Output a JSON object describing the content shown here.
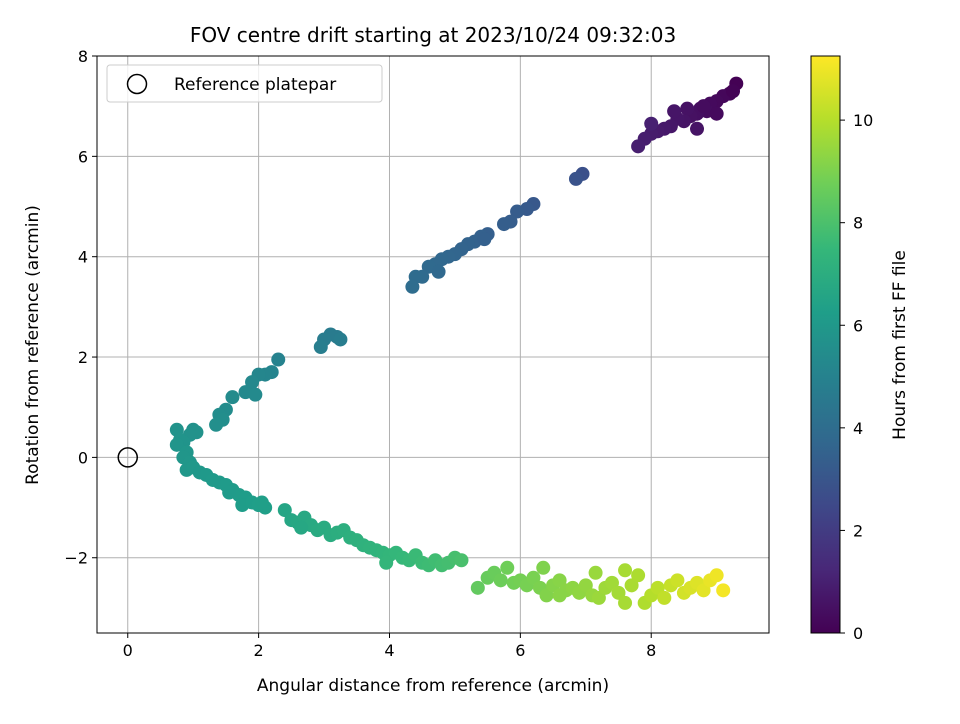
{
  "chart_data": {
    "type": "scatter",
    "title": "FOV centre drift starting at 2023/10/24 09:32:03",
    "xlabel": "Angular distance from reference (arcmin)",
    "ylabel": "Rotation from reference (arcmin)",
    "xlim": [
      -0.47,
      9.8
    ],
    "ylim": [
      -3.5,
      8
    ],
    "xticks": [
      "0",
      "2",
      "4",
      "6",
      "8"
    ],
    "yticks": [
      "−2",
      "0",
      "2",
      "4",
      "6",
      "8"
    ],
    "grid": true,
    "legend": {
      "position": "top-left",
      "label": "Reference platepar"
    },
    "reference_point": {
      "x": 0,
      "y": 0
    },
    "colorbar": {
      "label": "Hours from first FF file",
      "min": 0,
      "max": 11.25,
      "ticks": [
        "0",
        "2",
        "4",
        "6",
        "8",
        "10"
      ],
      "colormap": "viridis",
      "colors": [
        "#440154",
        "#482878",
        "#3e4989",
        "#31688e",
        "#26828e",
        "#1f9e89",
        "#35b779",
        "#6ece58",
        "#b5de2b",
        "#fde725"
      ]
    },
    "series": [
      {
        "values": [
          {
            "x": 9.3,
            "y": 7.45,
            "c": 0.0
          },
          {
            "x": 9.2,
            "y": 7.25,
            "c": 0.1
          },
          {
            "x": 9.1,
            "y": 7.2,
            "c": 0.2
          },
          {
            "x": 9.0,
            "y": 7.1,
            "c": 0.25
          },
          {
            "x": 8.9,
            "y": 7.05,
            "c": 0.3
          },
          {
            "x": 8.85,
            "y": 6.9,
            "c": 0.35
          },
          {
            "x": 8.75,
            "y": 6.95,
            "c": 0.4
          },
          {
            "x": 8.7,
            "y": 6.85,
            "c": 0.45
          },
          {
            "x": 8.6,
            "y": 6.8,
            "c": 0.5
          },
          {
            "x": 8.55,
            "y": 6.95,
            "c": 0.55
          },
          {
            "x": 8.5,
            "y": 6.7,
            "c": 0.6
          },
          {
            "x": 8.4,
            "y": 6.75,
            "c": 0.65
          },
          {
            "x": 8.3,
            "y": 6.6,
            "c": 0.7
          },
          {
            "x": 8.2,
            "y": 6.55,
            "c": 0.75
          },
          {
            "x": 8.1,
            "y": 6.5,
            "c": 0.8
          },
          {
            "x": 8.0,
            "y": 6.45,
            "c": 0.85
          },
          {
            "x": 7.9,
            "y": 6.35,
            "c": 0.9
          },
          {
            "x": 7.8,
            "y": 6.2,
            "c": 0.95
          },
          {
            "x": 8.0,
            "y": 6.65,
            "c": 1.0
          },
          {
            "x": 8.7,
            "y": 6.55,
            "c": 0.6
          },
          {
            "x": 8.8,
            "y": 7.0,
            "c": 0.35
          },
          {
            "x": 9.0,
            "y": 6.85,
            "c": 0.3
          },
          {
            "x": 9.25,
            "y": 7.3,
            "c": 0.08
          },
          {
            "x": 8.35,
            "y": 6.9,
            "c": 0.65
          },
          {
            "x": 6.95,
            "y": 5.65,
            "c": 2.8
          },
          {
            "x": 6.85,
            "y": 5.55,
            "c": 2.9
          },
          {
            "x": 6.2,
            "y": 5.05,
            "c": 3.1
          },
          {
            "x": 6.1,
            "y": 4.95,
            "c": 3.2
          },
          {
            "x": 5.95,
            "y": 4.9,
            "c": 3.25
          },
          {
            "x": 5.85,
            "y": 4.7,
            "c": 3.3
          },
          {
            "x": 5.75,
            "y": 4.65,
            "c": 3.35
          },
          {
            "x": 5.5,
            "y": 4.45,
            "c": 3.4
          },
          {
            "x": 5.4,
            "y": 4.4,
            "c": 3.45
          },
          {
            "x": 5.3,
            "y": 4.3,
            "c": 3.5
          },
          {
            "x": 5.2,
            "y": 4.25,
            "c": 3.55
          },
          {
            "x": 5.1,
            "y": 4.15,
            "c": 3.6
          },
          {
            "x": 5.0,
            "y": 4.05,
            "c": 3.65
          },
          {
            "x": 4.9,
            "y": 4.0,
            "c": 3.7
          },
          {
            "x": 4.8,
            "y": 3.95,
            "c": 3.75
          },
          {
            "x": 4.7,
            "y": 3.85,
            "c": 3.8
          },
          {
            "x": 4.6,
            "y": 3.8,
            "c": 3.85
          },
          {
            "x": 4.5,
            "y": 3.6,
            "c": 3.9
          },
          {
            "x": 4.4,
            "y": 3.6,
            "c": 3.95
          },
          {
            "x": 4.35,
            "y": 3.4,
            "c": 4.0
          },
          {
            "x": 5.45,
            "y": 4.35,
            "c": 3.42
          },
          {
            "x": 4.75,
            "y": 3.7,
            "c": 3.82
          },
          {
            "x": 3.2,
            "y": 2.4,
            "c": 4.6
          },
          {
            "x": 3.1,
            "y": 2.45,
            "c": 4.65
          },
          {
            "x": 3.0,
            "y": 2.35,
            "c": 4.7
          },
          {
            "x": 3.25,
            "y": 2.35,
            "c": 4.75
          },
          {
            "x": 2.95,
            "y": 2.2,
            "c": 4.8
          },
          {
            "x": 2.3,
            "y": 1.95,
            "c": 5.0
          },
          {
            "x": 2.2,
            "y": 1.7,
            "c": 5.1
          },
          {
            "x": 2.1,
            "y": 1.65,
            "c": 5.15
          },
          {
            "x": 2.0,
            "y": 1.65,
            "c": 5.2
          },
          {
            "x": 1.9,
            "y": 1.5,
            "c": 5.25
          },
          {
            "x": 1.8,
            "y": 1.3,
            "c": 5.3
          },
          {
            "x": 1.95,
            "y": 1.25,
            "c": 5.35
          },
          {
            "x": 1.6,
            "y": 1.2,
            "c": 5.4
          },
          {
            "x": 1.5,
            "y": 0.95,
            "c": 5.45
          },
          {
            "x": 1.4,
            "y": 0.85,
            "c": 5.5
          },
          {
            "x": 1.45,
            "y": 0.75,
            "c": 5.55
          },
          {
            "x": 1.35,
            "y": 0.65,
            "c": 5.6
          },
          {
            "x": 1.0,
            "y": 0.55,
            "c": 5.65
          },
          {
            "x": 1.05,
            "y": 0.5,
            "c": 5.7
          },
          {
            "x": 0.95,
            "y": 0.45,
            "c": 5.72
          },
          {
            "x": 0.75,
            "y": 0.55,
            "c": 5.75
          },
          {
            "x": 0.8,
            "y": 0.35,
            "c": 5.8
          },
          {
            "x": 0.85,
            "y": 0.3,
            "c": 5.82
          },
          {
            "x": 0.75,
            "y": 0.25,
            "c": 5.85
          },
          {
            "x": 0.9,
            "y": 0.1,
            "c": 5.88
          },
          {
            "x": 0.85,
            "y": 0.0,
            "c": 5.9
          },
          {
            "x": 0.95,
            "y": -0.1,
            "c": 5.92
          },
          {
            "x": 0.9,
            "y": -0.25,
            "c": 5.95
          },
          {
            "x": 1.0,
            "y": -0.2,
            "c": 5.97
          },
          {
            "x": 1.1,
            "y": -0.3,
            "c": 6.0
          },
          {
            "x": 1.2,
            "y": -0.35,
            "c": 6.02
          },
          {
            "x": 1.3,
            "y": -0.45,
            "c": 6.05
          },
          {
            "x": 1.4,
            "y": -0.5,
            "c": 6.08
          },
          {
            "x": 1.5,
            "y": -0.55,
            "c": 6.1
          },
          {
            "x": 1.6,
            "y": -0.65,
            "c": 6.13
          },
          {
            "x": 1.7,
            "y": -0.75,
            "c": 6.16
          },
          {
            "x": 1.8,
            "y": -0.8,
            "c": 6.2
          },
          {
            "x": 1.75,
            "y": -0.95,
            "c": 6.22
          },
          {
            "x": 1.9,
            "y": -0.9,
            "c": 6.25
          },
          {
            "x": 2.0,
            "y": -0.95,
            "c": 6.28
          },
          {
            "x": 2.1,
            "y": -1.0,
            "c": 6.3
          },
          {
            "x": 2.05,
            "y": -0.9,
            "c": 6.32
          },
          {
            "x": 1.55,
            "y": -0.7,
            "c": 6.12
          },
          {
            "x": 2.4,
            "y": -1.05,
            "c": 6.6
          },
          {
            "x": 2.5,
            "y": -1.25,
            "c": 6.65
          },
          {
            "x": 2.6,
            "y": -1.3,
            "c": 6.7
          },
          {
            "x": 2.7,
            "y": -1.2,
            "c": 6.75
          },
          {
            "x": 2.8,
            "y": -1.35,
            "c": 6.8
          },
          {
            "x": 2.9,
            "y": -1.45,
            "c": 6.85
          },
          {
            "x": 3.0,
            "y": -1.4,
            "c": 6.9
          },
          {
            "x": 3.1,
            "y": -1.55,
            "c": 6.95
          },
          {
            "x": 3.2,
            "y": -1.5,
            "c": 7.0
          },
          {
            "x": 3.3,
            "y": -1.45,
            "c": 7.05
          },
          {
            "x": 3.4,
            "y": -1.6,
            "c": 7.1
          },
          {
            "x": 3.5,
            "y": -1.65,
            "c": 7.15
          },
          {
            "x": 3.6,
            "y": -1.75,
            "c": 7.2
          },
          {
            "x": 3.7,
            "y": -1.8,
            "c": 7.25
          },
          {
            "x": 3.8,
            "y": -1.85,
            "c": 7.3
          },
          {
            "x": 3.9,
            "y": -1.9,
            "c": 7.35
          },
          {
            "x": 4.0,
            "y": -1.95,
            "c": 7.4
          },
          {
            "x": 4.1,
            "y": -1.9,
            "c": 7.45
          },
          {
            "x": 4.2,
            "y": -2.0,
            "c": 7.5
          },
          {
            "x": 4.3,
            "y": -2.05,
            "c": 7.55
          },
          {
            "x": 4.4,
            "y": -1.95,
            "c": 7.6
          },
          {
            "x": 4.5,
            "y": -2.1,
            "c": 7.65
          },
          {
            "x": 4.6,
            "y": -2.15,
            "c": 7.7
          },
          {
            "x": 4.7,
            "y": -2.05,
            "c": 7.75
          },
          {
            "x": 4.8,
            "y": -2.15,
            "c": 7.8
          },
          {
            "x": 4.9,
            "y": -2.1,
            "c": 7.85
          },
          {
            "x": 5.0,
            "y": -2.0,
            "c": 7.9
          },
          {
            "x": 5.1,
            "y": -2.05,
            "c": 7.95
          },
          {
            "x": 3.95,
            "y": -2.1,
            "c": 7.42
          },
          {
            "x": 2.65,
            "y": -1.4,
            "c": 6.72
          },
          {
            "x": 5.35,
            "y": -2.6,
            "c": 8.5
          },
          {
            "x": 5.5,
            "y": -2.4,
            "c": 8.6
          },
          {
            "x": 5.6,
            "y": -2.3,
            "c": 8.65
          },
          {
            "x": 5.7,
            "y": -2.45,
            "c": 8.7
          },
          {
            "x": 5.8,
            "y": -2.2,
            "c": 8.75
          },
          {
            "x": 5.9,
            "y": -2.5,
            "c": 8.8
          },
          {
            "x": 6.0,
            "y": -2.45,
            "c": 8.85
          },
          {
            "x": 6.1,
            "y": -2.55,
            "c": 8.9
          },
          {
            "x": 6.2,
            "y": -2.4,
            "c": 8.95
          },
          {
            "x": 6.3,
            "y": -2.6,
            "c": 9.0
          },
          {
            "x": 6.35,
            "y": -2.2,
            "c": 9.05
          },
          {
            "x": 6.4,
            "y": -2.75,
            "c": 9.1
          },
          {
            "x": 6.5,
            "y": -2.55,
            "c": 9.15
          },
          {
            "x": 6.6,
            "y": -2.45,
            "c": 9.2
          },
          {
            "x": 6.7,
            "y": -2.65,
            "c": 9.25
          },
          {
            "x": 6.8,
            "y": -2.6,
            "c": 9.3
          },
          {
            "x": 6.9,
            "y": -2.7,
            "c": 9.35
          },
          {
            "x": 7.0,
            "y": -2.55,
            "c": 9.4
          },
          {
            "x": 7.1,
            "y": -2.75,
            "c": 9.45
          },
          {
            "x": 7.15,
            "y": -2.3,
            "c": 9.5
          },
          {
            "x": 7.2,
            "y": -2.8,
            "c": 9.55
          },
          {
            "x": 7.3,
            "y": -2.6,
            "c": 9.6
          },
          {
            "x": 7.4,
            "y": -2.5,
            "c": 9.65
          },
          {
            "x": 7.5,
            "y": -2.7,
            "c": 9.7
          },
          {
            "x": 7.6,
            "y": -2.9,
            "c": 9.75
          },
          {
            "x": 7.7,
            "y": -2.55,
            "c": 9.8
          },
          {
            "x": 7.8,
            "y": -2.35,
            "c": 9.85
          },
          {
            "x": 7.9,
            "y": -2.9,
            "c": 9.9
          },
          {
            "x": 8.0,
            "y": -2.75,
            "c": 10.0
          },
          {
            "x": 8.1,
            "y": -2.6,
            "c": 10.1
          },
          {
            "x": 8.2,
            "y": -2.8,
            "c": 10.2
          },
          {
            "x": 8.3,
            "y": -2.55,
            "c": 10.3
          },
          {
            "x": 8.4,
            "y": -2.45,
            "c": 10.4
          },
          {
            "x": 8.5,
            "y": -2.7,
            "c": 10.5
          },
          {
            "x": 8.6,
            "y": -2.6,
            "c": 10.6
          },
          {
            "x": 8.7,
            "y": -2.5,
            "c": 10.7
          },
          {
            "x": 8.8,
            "y": -2.65,
            "c": 10.8
          },
          {
            "x": 8.9,
            "y": -2.45,
            "c": 10.9
          },
          {
            "x": 9.0,
            "y": -2.35,
            "c": 11.0
          },
          {
            "x": 9.1,
            "y": -2.65,
            "c": 11.1
          },
          {
            "x": 7.6,
            "y": -2.25,
            "c": 9.76
          },
          {
            "x": 6.6,
            "y": -2.75,
            "c": 9.22
          }
        ]
      }
    ]
  }
}
